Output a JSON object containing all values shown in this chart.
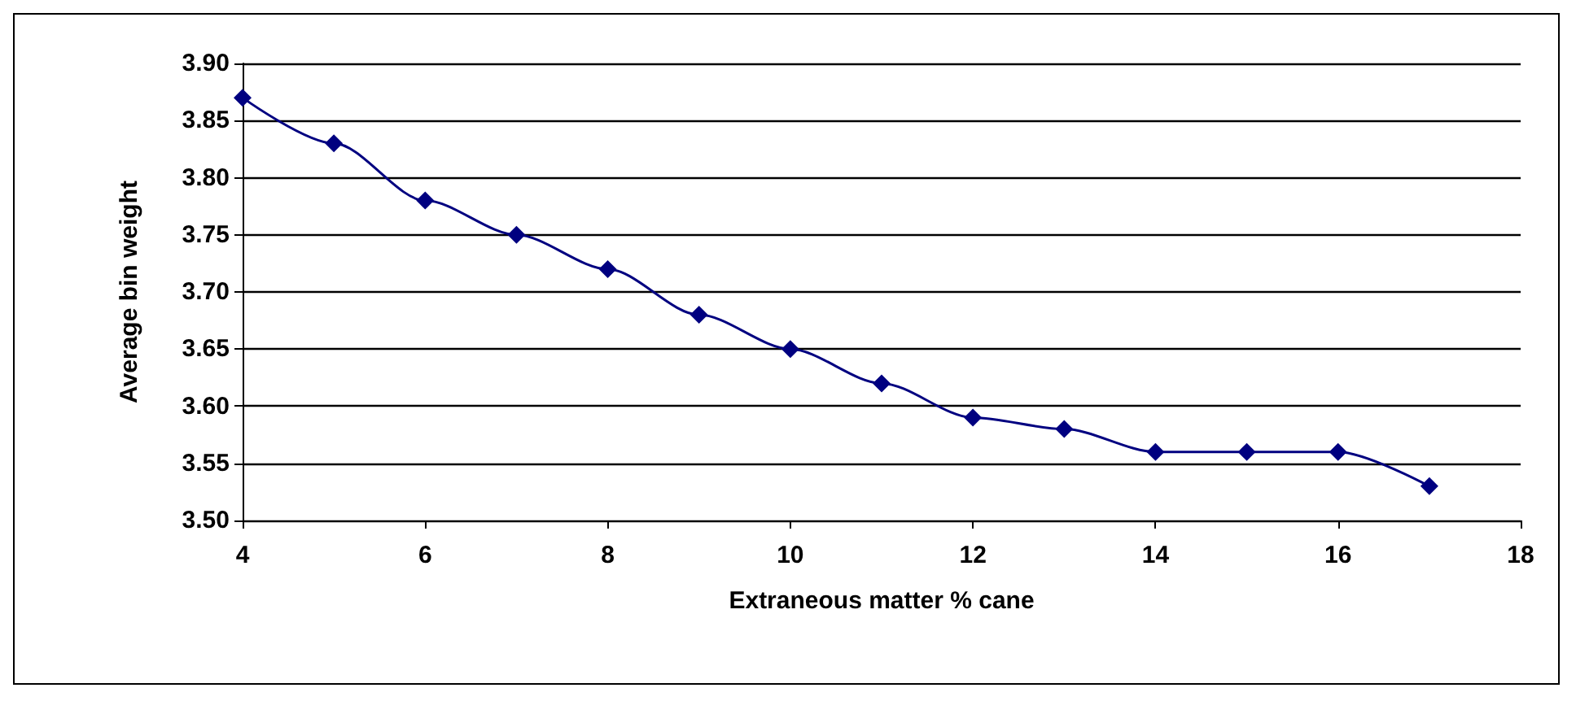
{
  "chart_data": {
    "type": "line",
    "xlabel": "Extraneous matter % cane",
    "ylabel": "Average bin weight",
    "x": [
      4,
      5,
      6,
      7,
      8,
      9,
      10,
      11,
      12,
      13,
      14,
      15,
      16,
      17
    ],
    "series": [
      {
        "color": "#000080",
        "values": [
          3.87,
          3.83,
          3.78,
          3.75,
          3.72,
          3.68,
          3.65,
          3.62,
          3.59,
          3.58,
          3.56,
          3.56,
          3.56,
          3.53
        ]
      }
    ],
    "xlim": [
      4,
      18
    ],
    "xticks": [
      4,
      6,
      8,
      10,
      12,
      14,
      16,
      18
    ],
    "ylim": [
      3.5,
      3.9
    ],
    "yticks": [
      {
        "value": 3.5,
        "label": "3.50"
      },
      {
        "value": 3.55,
        "label": "3.55"
      },
      {
        "value": 3.6,
        "label": "3.60"
      },
      {
        "value": 3.65,
        "label": "3.65"
      },
      {
        "value": 3.7,
        "label": "3.70"
      },
      {
        "value": 3.75,
        "label": "3.75"
      },
      {
        "value": 3.8,
        "label": "3.80"
      },
      {
        "value": 3.85,
        "label": "3.85"
      },
      {
        "value": 3.9,
        "label": "3.90"
      }
    ],
    "grid": "y",
    "marker": "diamond",
    "line_style": "solid"
  }
}
